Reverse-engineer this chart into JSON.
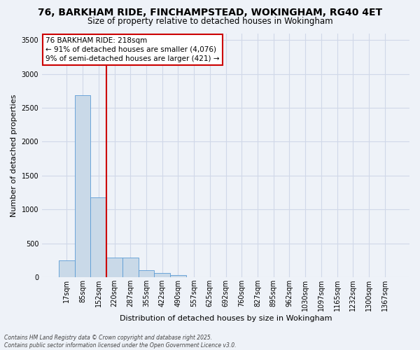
{
  "title": "76, BARKHAM RIDE, FINCHAMPSTEAD, WOKINGHAM, RG40 4ET",
  "subtitle": "Size of property relative to detached houses in Wokingham",
  "xlabel": "Distribution of detached houses by size in Wokingham",
  "ylabel": "Number of detached properties",
  "categories": [
    "17sqm",
    "85sqm",
    "152sqm",
    "220sqm",
    "287sqm",
    "355sqm",
    "422sqm",
    "490sqm",
    "557sqm",
    "625sqm",
    "692sqm",
    "760sqm",
    "827sqm",
    "895sqm",
    "962sqm",
    "1030sqm",
    "1097sqm",
    "1165sqm",
    "1232sqm",
    "1300sqm",
    "1367sqm"
  ],
  "values": [
    250,
    2690,
    1175,
    290,
    290,
    100,
    60,
    35,
    0,
    0,
    0,
    0,
    0,
    0,
    0,
    0,
    0,
    0,
    0,
    0,
    0
  ],
  "bar_color": "#c9d9e8",
  "bar_edge_color": "#5b9bd5",
  "grid_color": "#d0d8e8",
  "background_color": "#eef2f8",
  "vline_x": 2.5,
  "vline_color": "#cc0000",
  "annotation_line1": "76 BARKHAM RIDE: 218sqm",
  "annotation_line2": "← 91% of detached houses are smaller (4,076)",
  "annotation_line3": "9% of semi-detached houses are larger (421) →",
  "annotation_box_color": "#cc0000",
  "annotation_bg": "#ffffff",
  "ylim": [
    0,
    3600
  ],
  "yticks": [
    0,
    500,
    1000,
    1500,
    2000,
    2500,
    3000,
    3500
  ],
  "footer_line1": "Contains HM Land Registry data © Crown copyright and database right 2025.",
  "footer_line2": "Contains public sector information licensed under the Open Government Licence v3.0.",
  "title_fontsize": 10,
  "subtitle_fontsize": 8.5,
  "axis_label_fontsize": 8,
  "tick_fontsize": 7,
  "annotation_fontsize": 7.5,
  "footer_fontsize": 5.5
}
